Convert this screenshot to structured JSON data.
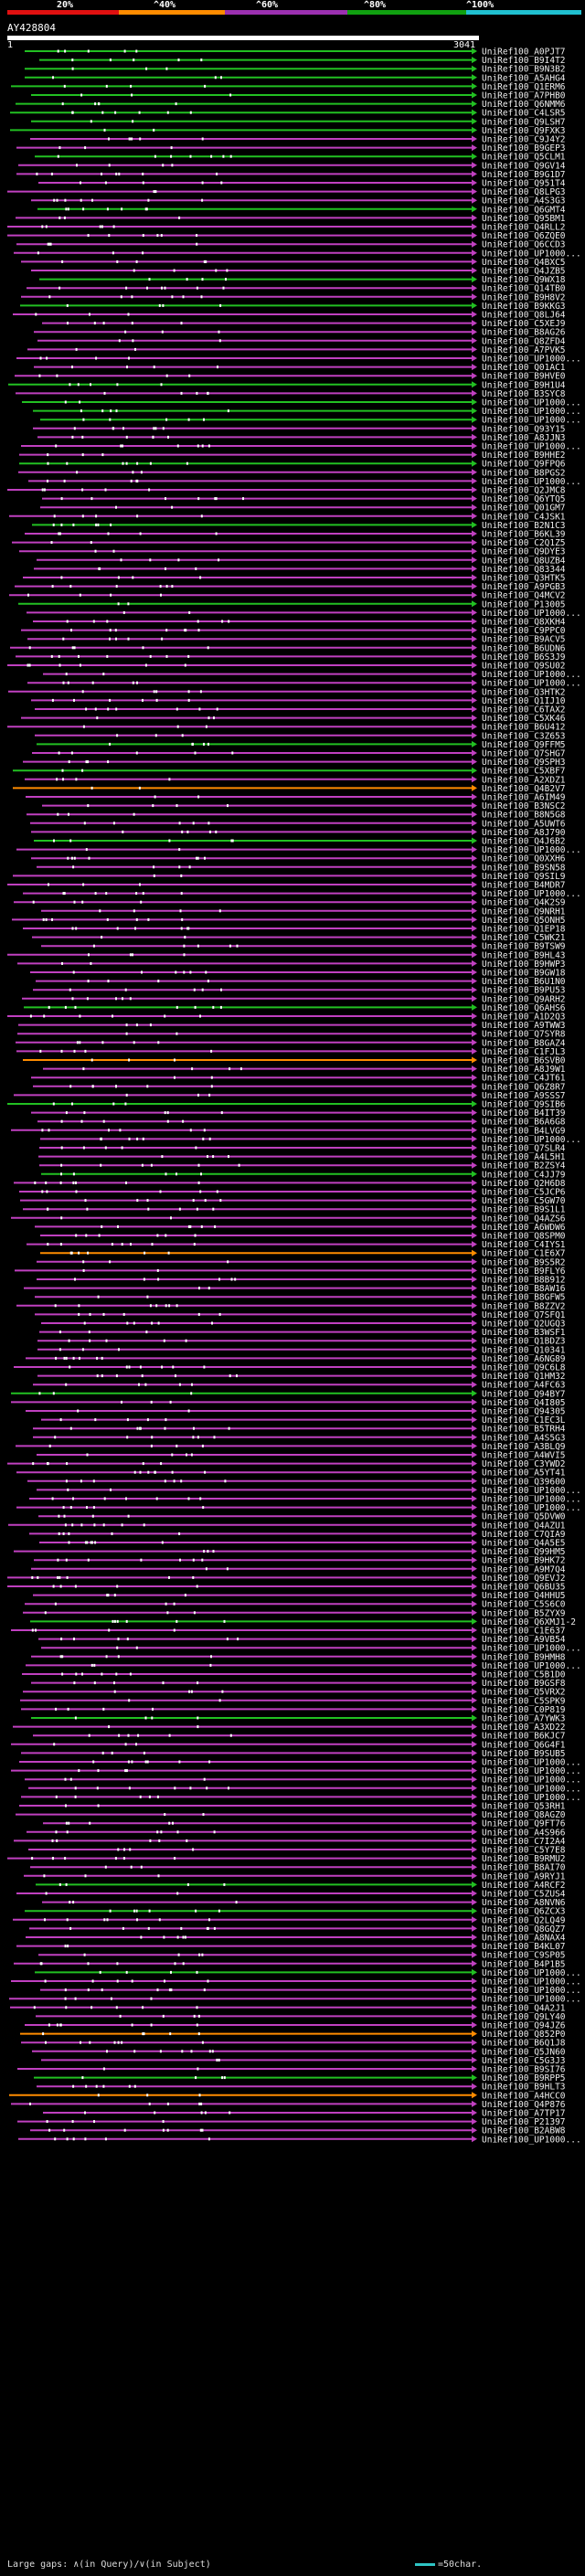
{
  "scale": {
    "labels": [
      "20%",
      "^40%",
      "^60%",
      "^80%",
      "^100%"
    ],
    "colors": [
      "#e01010",
      "#ff8c00",
      "#9b30b0",
      "#10a010",
      "#20c0d0"
    ]
  },
  "query": {
    "id": "AY428804",
    "start": "1",
    "end": "3041"
  },
  "legend": {
    "gaps": "Large gaps: ∧(in Query)/∨(in Subject)",
    "scale_note": "=50char."
  },
  "hits": [
    "UniRef100_A0PJT7",
    "UniRef100_B9I4T2",
    "UniRef100_B9N3B2",
    "UniRef100_A5AHG4",
    "UniRef100_Q1ERM6",
    "UniRef100_A7PHB0",
    "UniRef100_Q6NMM6",
    "UniRef100_C4LSR5",
    "UniRef100_Q9LSH7",
    "UniRef100_Q9FXK3",
    "UniRef100_C9J4Y2",
    "UniRef100_B9GEP3",
    "UniRef100_Q5CLM1",
    "UniRef100_Q9GV14",
    "UniRef100_B9G1D7",
    "UniRef100_Q951T4",
    "UniRef100_Q8LPG3",
    "UniRef100_A4S3G3",
    "UniRef100_Q6GMT4",
    "UniRef100_Q95BM1",
    "UniRef100_Q4RLL2",
    "UniRef100_Q6ZQE0",
    "UniRef100_Q6CCD3",
    "UniRef100_UP1000...",
    "UniRef100_Q4BXC5",
    "UniRef100_Q4JZB5",
    "UniRef100_Q9WX18",
    "UniRef100_Q14TB0",
    "UniRef100_B9H8V2",
    "UniRef100_B9KKG3",
    "UniRef100_Q8LJ64",
    "UniRef100_C5XEJ9",
    "UniRef100_B8AG26",
    "UniRef100_Q8ZFD4",
    "UniRef100_A7PVK5",
    "UniRef100_UP1000...",
    "UniRef100_Q01AC1",
    "UniRef100_B9HVE0",
    "UniRef100_B9H1U4",
    "UniRef100_B3SYC8",
    "UniRef100_UP1000...",
    "UniRef100_UP1000...",
    "UniRef100_UP1000...",
    "UniRef100_Q93Y15",
    "UniRef100_A8JJN3",
    "UniRef100_UP1000...",
    "UniRef100_B9HHE2",
    "UniRef100_Q9FPQ6",
    "UniRef100_B8PGS2",
    "UniRef100_UP1000...",
    "UniRef100_Q2JMC8",
    "UniRef100_Q6YTQ5",
    "UniRef100_Q01GM7",
    "UniRef100_C4JSK1",
    "UniRef100_B2N1C3",
    "UniRef100_B6KL39",
    "UniRef100_C2Q1Z5",
    "UniRef100_Q9DYE3",
    "UniRef100_Q8UZB4",
    "UniRef100_Q83344",
    "UniRef100_Q3HTK5",
    "UniRef100_A9PGB3",
    "UniRef100_Q4MCV2",
    "UniRef100_P13005",
    "UniRef100_UP1000...",
    "UniRef100_Q8XKH4",
    "UniRef100_C9PPC0",
    "UniRef100_B9ACV5",
    "UniRef100_B6UDN6",
    "UniRef100_B6S3J9",
    "UniRef100_Q9SU02",
    "UniRef100_UP1000...",
    "UniRef100_UP1000...",
    "UniRef100_Q3HTK2",
    "UniRef100_Q1IJ10",
    "UniRef100_C6TAX2",
    "UniRef100_C5XK46",
    "UniRef100_B6U412",
    "UniRef100_C3Z653",
    "UniRef100_Q9FFM5",
    "UniRef100_Q7SHG7",
    "UniRef100_Q9SPH3",
    "UniRef100_C5XBF7",
    "UniRef100_A2XDZ1",
    "UniRef100_Q4B2V7",
    "UniRef100_A6IM49",
    "UniRef100_B3NSC2",
    "UniRef100_B8N5G8",
    "UniRef100_A5UWT6",
    "UniRef100_A8J790",
    "UniRef100_Q4J6B2",
    "UniRef100_UP1000...",
    "UniRef100_Q0XXH6",
    "UniRef100_B9SN58",
    "UniRef100_Q9SIL9",
    "UniRef100_B4MDR7",
    "UniRef100_UP1000...",
    "UniRef100_Q4K2S9",
    "UniRef100_Q9NRH1",
    "UniRef100_Q5ONH5",
    "UniRef100_Q1EP18",
    "UniRef100_C5WK21",
    "UniRef100_B9TSW9",
    "UniRef100_B9HL43",
    "UniRef100_B9HWP3",
    "UniRef100_B9GW18",
    "UniRef100_B6U1N0",
    "UniRef100_B9PU53",
    "UniRef100_Q9ARH2",
    "UniRef100_Q6AHS6",
    "UniRef100_A1D2Q3",
    "UniRef100_A9TWW3",
    "UniRef100_Q7SYR8",
    "UniRef100_B8GAZ4",
    "UniRef100_C1FJL3",
    "UniRef100_B6SVB0",
    "UniRef100_A8J9W1",
    "UniRef100_C4JT61",
    "UniRef100_Q6Z8R7",
    "UniRef100_A9SSS7",
    "UniRef100_Q9SIB6",
    "UniRef100_B4IT39",
    "UniRef100_B6A6G8",
    "UniRef100_B4LVG9",
    "UniRef100_UP1000...",
    "UniRef100_Q7SLR4",
    "UniRef100_A4L5H1",
    "UniRef100_B2ZSY4",
    "UniRef100_C4JJ79",
    "UniRef100_Q2H6D8",
    "UniRef100_C5JCP6",
    "UniRef100_C5GW70",
    "UniRef100_B9S1L1",
    "UniRef100_Q4AZS6",
    "UniRef100_A6WDW6",
    "UniRef100_Q8SPM0",
    "UniRef100_C4IYS1",
    "UniRef100_C1E6X7",
    "UniRef100_B9S5R2",
    "UniRef100_B9FLY6",
    "UniRef100_B8B912",
    "UniRef100_B8AW16",
    "UniRef100_B8GFW5",
    "UniRef100_B8ZZV2",
    "UniRef100_Q7SFQ1",
    "UniRef100_Q2UGQ3",
    "UniRef100_B3WSF1",
    "UniRef100_Q1BDZ3",
    "UniRef100_Q10341",
    "UniRef100_A6NG89",
    "UniRef100_Q9C6L8",
    "UniRef100_Q1HM32",
    "UniRef100_A4FC63",
    "UniRef100_Q94BY7",
    "UniRef100_Q4I805",
    "UniRef100_Q94305",
    "UniRef100_C1EC3L",
    "UniRef100_B5TRH4",
    "UniRef100_A4S5G3",
    "UniRef100_A3BLQ9",
    "UniRef100_A4WVI5",
    "UniRef100_C3YWD2",
    "UniRef100_A5YT41",
    "UniRef100_Q39600",
    "UniRef100_UP1000...",
    "UniRef100_UP1000...",
    "UniRef100_UP1000...",
    "UniRef100_Q5DVW0",
    "UniRef100_Q4AZU1",
    "UniRef100_C7QIA9",
    "UniRef100_Q4A5E5",
    "UniRef100_Q99HM5",
    "UniRef100_B9HK72",
    "UniRef100_A9M7Q4",
    "UniRef100_Q9EVJ2",
    "UniRef100_Q6BU35",
    "UniRef100_Q4HHU5",
    "UniRef100_C5S6C0",
    "UniRef100_B5ZYX9",
    "UniRef100_Q6XMJ1-2",
    "UniRef100_C1E637",
    "UniRef100_A9VB54",
    "UniRef100_UP1000...",
    "UniRef100_B9HMH8",
    "UniRef100_UP1000...",
    "UniRef100_C5B1D0",
    "UniRef100_B9GSF8",
    "UniRef100_Q5VRX2",
    "UniRef100_C5SPK9",
    "UniRef100_C0P819",
    "UniRef100_A7YWK3",
    "UniRef100_A3XD22",
    "UniRef100_B6KJC7",
    "UniRef100_Q6G4F1",
    "UniRef100_B9SUB5",
    "UniRef100_UP1000...",
    "UniRef100_UP1000...",
    "UniRef100_UP1000...",
    "UniRef100_UP1000...",
    "UniRef100_UP1000...",
    "UniRef100_Q53RH1",
    "UniRef100_Q8AGZ0",
    "UniRef100_Q9FT76",
    "UniRef100_A4S966",
    "UniRef100_C7I2A4",
    "UniRef100_C5Y7E8",
    "UniRef100_B9RMU2",
    "UniRef100_B8AI70",
    "UniRef100_A9RYJ1",
    "UniRef100_A4RCF2",
    "UniRef100_C5ZUS4",
    "UniRef100_A8NVN6",
    "UniRef100_Q6ZCX3",
    "UniRef100_Q2LQ49",
    "UniRef100_Q8GQZ7",
    "UniRef100_A8NAX4",
    "UniRef100_B4KL07",
    "UniRef100_C9SP05",
    "UniRef100_B4P1B5",
    "UniRef100_UP1000...",
    "UniRef100_UP1000...",
    "UniRef100_UP1000...",
    "UniRef100_UP1000...",
    "UniRef100_Q4A2J1",
    "UniRef100_Q9LY40",
    "UniRef100_Q94JZ6",
    "UniRef100_Q852P0",
    "UniRef100_B6Q1J8",
    "UniRef100_Q5JN60",
    "UniRef100_C5G3J3",
    "UniRef100_B9SI76",
    "UniRef100_B9RPP5",
    "UniRef100_B9HLT3",
    "UniRef100_A4HCC0",
    "UniRef100_Q4P876",
    "UniRef100_A7TP17",
    "UniRef100_P21397",
    "UniRef100_B2ABW8",
    "UniRef100_UP1000..."
  ]
}
